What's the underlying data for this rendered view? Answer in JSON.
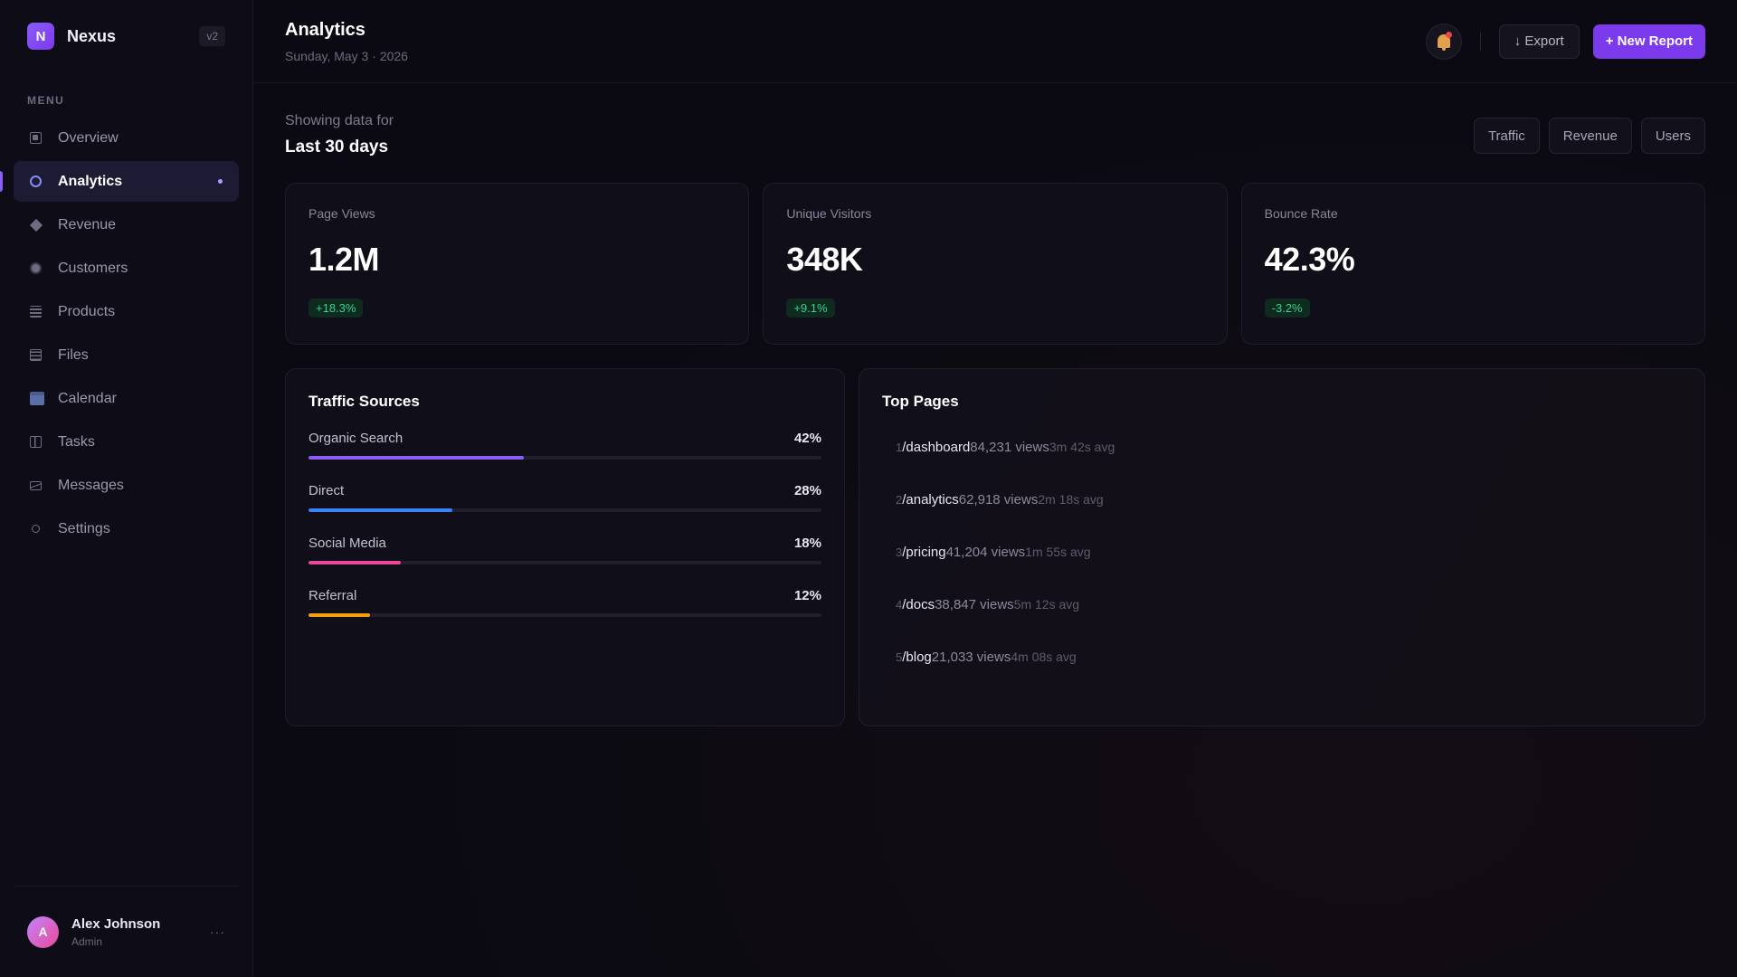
{
  "brand": {
    "initial": "N",
    "name": "Nexus",
    "version": "v2"
  },
  "sidebar": {
    "menu_label": "MENU",
    "items": [
      {
        "label": "Overview",
        "icon": "overview-icon"
      },
      {
        "label": "Analytics",
        "icon": "analytics-icon",
        "active": true
      },
      {
        "label": "Revenue",
        "icon": "revenue-icon"
      },
      {
        "label": "Customers",
        "icon": "customers-icon"
      },
      {
        "label": "Products",
        "icon": "products-icon"
      },
      {
        "label": "Files",
        "icon": "files-icon"
      },
      {
        "label": "Calendar",
        "icon": "calendar-icon"
      },
      {
        "label": "Tasks",
        "icon": "tasks-icon"
      },
      {
        "label": "Messages",
        "icon": "messages-icon"
      },
      {
        "label": "Settings",
        "icon": "settings-icon"
      }
    ]
  },
  "user": {
    "initial": "A",
    "name": "Alex Johnson",
    "role": "Admin",
    "more": "···"
  },
  "header": {
    "title": "Analytics",
    "date": "Sunday, May 3 · 2026",
    "export_label": "↓ Export",
    "new_report_label": "+ New Report"
  },
  "filter": {
    "label": "Showing data for",
    "value": "Last 30 days",
    "tabs": [
      "Traffic",
      "Revenue",
      "Users"
    ]
  },
  "stats": [
    {
      "label": "Page Views",
      "value": "1.2M",
      "delta": "+18.3%"
    },
    {
      "label": "Unique Visitors",
      "value": "348K",
      "delta": "+9.1%"
    },
    {
      "label": "Bounce Rate",
      "value": "42.3%",
      "delta": "-3.2%"
    }
  ],
  "traffic": {
    "title": "Traffic Sources",
    "sources": [
      {
        "name": "Organic Search",
        "pct_label": "42%",
        "value": 42,
        "color": "#8b5cf6"
      },
      {
        "name": "Direct",
        "pct_label": "28%",
        "value": 28,
        "color": "#3b82f6"
      },
      {
        "name": "Social Media",
        "pct_label": "18%",
        "value": 18,
        "color": "#ec4899"
      },
      {
        "name": "Referral",
        "pct_label": "12%",
        "value": 12,
        "color": "#f59e0b"
      }
    ]
  },
  "top_pages": {
    "title": "Top Pages",
    "rows": [
      {
        "rank": "1",
        "path": "/dashboard",
        "views": "84,231 views",
        "avg": "3m 42s avg"
      },
      {
        "rank": "2",
        "path": "/analytics",
        "views": "62,918 views",
        "avg": "2m 18s avg"
      },
      {
        "rank": "3",
        "path": "/pricing",
        "views": "41,204 views",
        "avg": "1m 55s avg"
      },
      {
        "rank": "4",
        "path": "/docs",
        "views": "38,847 views",
        "avg": "5m 12s avg"
      },
      {
        "rank": "5",
        "path": "/blog",
        "views": "21,033 views",
        "avg": "4m 08s avg"
      }
    ]
  },
  "colors": {
    "accent": "#7c3aed",
    "positive": "#34d399",
    "notification": "#ef4444"
  }
}
